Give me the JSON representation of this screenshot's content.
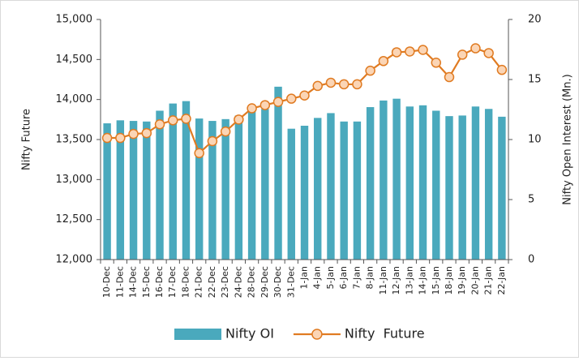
{
  "chart_data": {
    "type": "combo",
    "categories": [
      "10-Dec",
      "11-Dec",
      "14-Dec",
      "15-Dec",
      "16-Dec",
      "17-Dec",
      "18-Dec",
      "21-Dec",
      "22-Dec",
      "23-Dec",
      "24-Dec",
      "28-Dec",
      "29-Dec",
      "30-Dec",
      "31-Dec",
      "1-Jan",
      "4-Jan",
      "5-Jan",
      "6-Jan",
      "7-Jan",
      "8-Jan",
      "11-Jan",
      "12-Jan",
      "13-Jan",
      "14-Jan",
      "15-Jan",
      "18-Jan",
      "19-Jan",
      "20-Jan",
      "21-Jan",
      "22-Jan"
    ],
    "series": [
      {
        "name": "Nifty OI",
        "type": "bar",
        "axis": "y2",
        "color": "#4aa9bd",
        "values": [
          11.35,
          11.6,
          11.55,
          11.5,
          12.4,
          13.0,
          13.2,
          11.75,
          11.55,
          11.7,
          12.0,
          12.4,
          12.55,
          14.4,
          10.9,
          11.15,
          11.8,
          12.2,
          11.5,
          11.5,
          12.7,
          13.25,
          13.4,
          12.75,
          12.85,
          12.4,
          11.95,
          12.0,
          12.75,
          12.55,
          11.9
        ]
      },
      {
        "name": "Nifty  Future",
        "type": "line",
        "color": "#e07b22",
        "marker_fill": "#fbd5b5",
        "values": [
          13520,
          13520,
          13570,
          13580,
          13690,
          13740,
          13760,
          13330,
          13480,
          13600,
          13750,
          13890,
          13930,
          13970,
          14010,
          14050,
          14170,
          14210,
          14190,
          14190,
          14360,
          14480,
          14590,
          14600,
          14620,
          14460,
          14280,
          14560,
          14640,
          14580,
          14370
        ]
      }
    ],
    "ylabel": "Nifty Future",
    "y2label": "Nifty Open Interest (Mn.)",
    "ylim": [
      12000,
      15000
    ],
    "yticks": [
      {
        "value": 12000,
        "label": "12,000"
      },
      {
        "value": 12500,
        "label": "12,500"
      },
      {
        "value": 13000,
        "label": "13,000"
      },
      {
        "value": 13500,
        "label": "13,500"
      },
      {
        "value": 14000,
        "label": "14,000"
      },
      {
        "value": 14500,
        "label": "14,500"
      },
      {
        "value": 15000,
        "label": "15,000"
      }
    ],
    "y2lim": [
      0,
      20
    ],
    "y2ticks": [
      0,
      5,
      10,
      15,
      20
    ],
    "grid": false,
    "legend": "bottom"
  }
}
